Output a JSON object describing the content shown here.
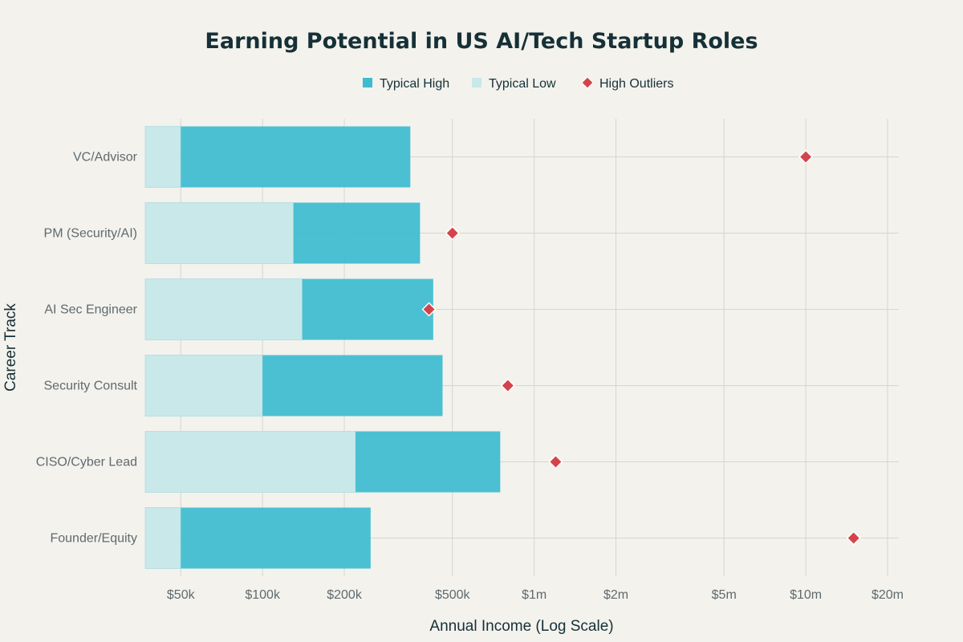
{
  "chart_data": {
    "type": "bar",
    "title": "Earning Potential in US AI/Tech Startup Roles",
    "xlabel": "Annual Income (Log Scale)",
    "ylabel": "Career Track",
    "x_scale": "log",
    "xlim": [
      37000,
      22000000
    ],
    "x_ticks": [
      {
        "value": 50000,
        "label": "$50k"
      },
      {
        "value": 100000,
        "label": "$100k"
      },
      {
        "value": 200000,
        "label": "$200k"
      },
      {
        "value": 500000,
        "label": "$500k"
      },
      {
        "value": 1000000,
        "label": "$1m"
      },
      {
        "value": 2000000,
        "label": "$2m"
      },
      {
        "value": 5000000,
        "label": "$5m"
      },
      {
        "value": 10000000,
        "label": "$10m"
      },
      {
        "value": 20000000,
        "label": "$20m"
      }
    ],
    "categories": [
      "VC/Advisor",
      "PM (Security/AI)",
      "AI Sec Engineer",
      "Security Consult",
      "CISO/Cyber Lead",
      "Founder/Equity"
    ],
    "series": [
      {
        "name": "Typical High",
        "type": "bar",
        "color": "#3dbccf",
        "values": [
          350000,
          380000,
          425000,
          460000,
          750000,
          250000
        ]
      },
      {
        "name": "Typical Low",
        "type": "bar",
        "color": "#c8e8ea",
        "values": [
          50000,
          130000,
          140000,
          100000,
          220000,
          50000
        ]
      },
      {
        "name": "High Outliers",
        "type": "scatter",
        "marker": "diamond",
        "color": "#d4434a",
        "values": [
          10000000,
          500000,
          410000,
          800000,
          1200000,
          15000000
        ]
      }
    ],
    "legend": {
      "position": "top-center",
      "items": [
        "Typical High",
        "Typical Low",
        "High Outliers"
      ]
    }
  }
}
